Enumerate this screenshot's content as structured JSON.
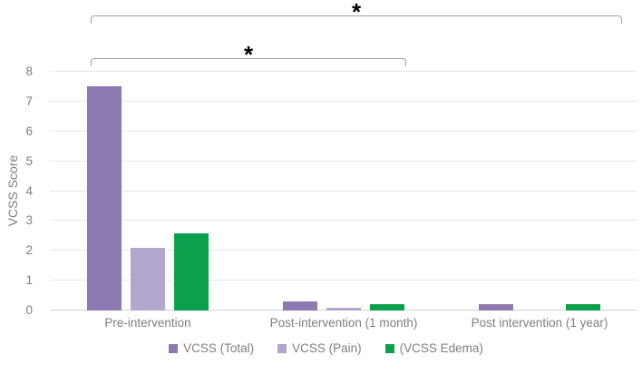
{
  "chart_data": {
    "type": "bar",
    "title": "",
    "xlabel": "",
    "ylabel": "VCSS Score",
    "ylim": [
      0,
      8
    ],
    "ytick_step": 1,
    "grid": true,
    "legend_position": "bottom",
    "categories": [
      "Pre-intervention",
      "Post-intervention (1 month)",
      "Post intervention (1 year)"
    ],
    "series": [
      {
        "name": "VCSS (Total)",
        "color": "#8c7ab0",
        "values": [
          7.5,
          0.3,
          0.2
        ]
      },
      {
        "name": "VCSS (Pain)",
        "color": "#b3a6cc",
        "values": [
          2.1,
          0.1,
          0
        ]
      },
      {
        "name": "(VCSS Edema)",
        "color": "#0aa04c",
        "values": [
          2.6,
          0.2,
          0.2
        ]
      }
    ],
    "annotations": [
      {
        "symbol": "*",
        "from_category": "Pre-intervention",
        "to_category": "Post intervention (1 year)"
      },
      {
        "symbol": "*",
        "from_category": "Pre-intervention",
        "to_category": "Post-intervention (1 month)"
      }
    ]
  },
  "colors": {
    "gridline": "#e8e8e8",
    "axis_line": "#d6d6d6",
    "text": "#7f7f7f",
    "bracket": "#a0a0a0",
    "asterisk": "#000000"
  }
}
